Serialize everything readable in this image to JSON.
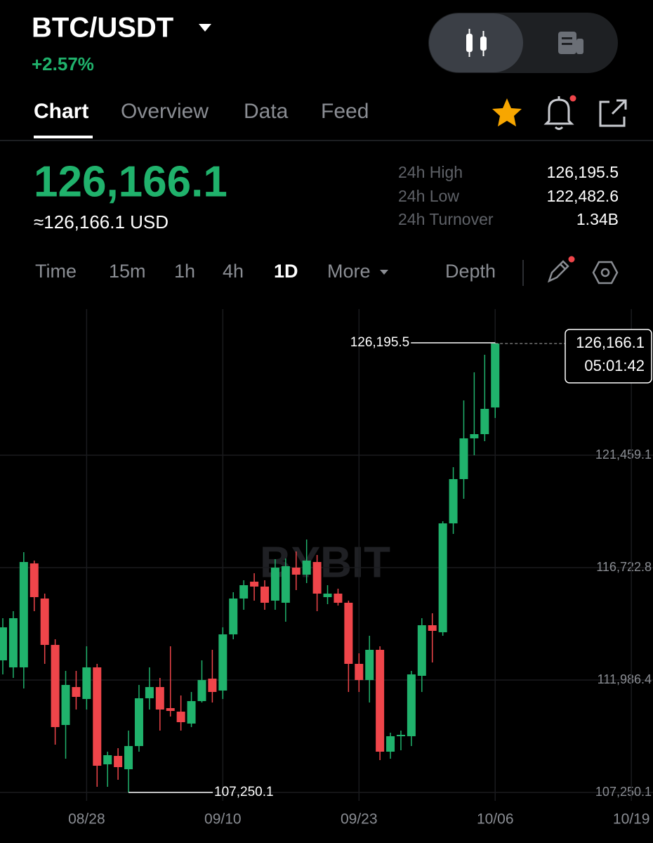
{
  "header": {
    "pair": "BTC/USDT",
    "change": "+2.57%"
  },
  "tabs": [
    "Chart",
    "Overview",
    "Data",
    "Feed"
  ],
  "ticker": {
    "price": "126,166.1",
    "fiat": "≈126,166.1 USD"
  },
  "stats": [
    {
      "label": "24h High",
      "value": "126,195.5"
    },
    {
      "label": "24h Low",
      "value": "122,482.6"
    },
    {
      "label": "24h Turnover",
      "value": "1.34B"
    }
  ],
  "toolbar": {
    "intervals": [
      "Time",
      "15m",
      "1h",
      "4h",
      "1D",
      "More"
    ],
    "depth": "Depth"
  },
  "chart_data": {
    "type": "candlestick",
    "categories": [
      null,
      null,
      null,
      null,
      null,
      null,
      null,
      null,
      "08/28",
      null,
      null,
      null,
      null,
      null,
      null,
      null,
      null,
      null,
      null,
      null,
      null,
      "09/10",
      null,
      null,
      null,
      null,
      null,
      null,
      null,
      null,
      null,
      null,
      null,
      null,
      "09/23",
      null,
      null,
      null,
      null,
      null,
      null,
      null,
      null,
      null,
      null,
      null,
      null,
      "10/06",
      null,
      null,
      null,
      null,
      null,
      null,
      null,
      null,
      null,
      null,
      null,
      null,
      "10/19"
    ],
    "open": [
      112816,
      112520,
      112520,
      116901,
      115421,
      113467,
      110093,
      111691,
      111188,
      112520,
      108435,
      108790,
      108228,
      109205,
      111218,
      111691,
      110803,
      110655,
      110152,
      111099,
      112046,
      111543,
      113911,
      115421,
      116131,
      115924,
      115332,
      115243,
      116723,
      116427,
      116960,
      115480,
      115628,
      115243,
      112668,
      111987,
      113260,
      108968,
      109619,
      109619,
      112165,
      114296,
      114000,
      118588,
      120453,
      122170,
      122347,
      123472,
      null,
      null,
      null,
      null,
      null,
      null,
      null,
      null,
      null,
      null,
      null,
      null,
      null
    ],
    "high": [
      114592,
      114888,
      117374,
      117019,
      115628,
      113704,
      112372,
      112372,
      113408,
      112668,
      108968,
      109116,
      109856,
      111780,
      112520,
      112076,
      113408,
      111336,
      111484,
      112816,
      113260,
      114207,
      115687,
      116190,
      116486,
      116190,
      117078,
      117108,
      117404,
      117907,
      117256,
      115983,
      115835,
      115332,
      113112,
      113852,
      113408,
      109767,
      109856,
      112372,
      114592,
      114799,
      118677,
      120956,
      123768,
      124952,
      125692,
      126195.5,
      null,
      null,
      null,
      null,
      null,
      null,
      null,
      null,
      null,
      null,
      null,
      null,
      null
    ],
    "low": [
      112224,
      112076,
      111632,
      114888,
      112668,
      109264,
      108672,
      110744,
      110744,
      107488,
      107488,
      107784,
      107250.1,
      108968,
      110744,
      109856,
      110448,
      109856,
      110004,
      111040,
      111040,
      111188,
      113704,
      114947,
      115332,
      114947,
      114947,
      114444,
      115776,
      116072,
      114888,
      115184,
      115125,
      111484,
      111484,
      111040,
      108613,
      108672,
      109027,
      109205,
      111484,
      112727,
      113852,
      118144,
      119624,
      121459,
      122051,
      123028,
      null,
      null,
      null,
      null,
      null,
      null,
      null,
      null,
      null,
      null,
      null,
      null,
      null
    ],
    "close": [
      114207,
      114592,
      116960,
      115480,
      113467,
      110004,
      111780,
      111277,
      112520,
      108376,
      108820,
      108317,
      109205,
      111218,
      111691,
      110744,
      110685,
      110211,
      111099,
      111987,
      111484,
      113911,
      115421,
      115983,
      115924,
      115243,
      116723,
      116782,
      116427,
      117019,
      115628,
      115628,
      115243,
      112668,
      111987,
      113260,
      108968,
      109619,
      109678,
      112224,
      114296,
      114059,
      118588,
      120453,
      122170,
      122347,
      123413,
      126166.1,
      null,
      null,
      null,
      null,
      null,
      null,
      null,
      null,
      null,
      null,
      null,
      null,
      null
    ],
    "up_color": "#20b26c",
    "down_color": "#ef454a",
    "ylim": [
      106896,
      127616
    ],
    "yticks": [
      {
        "value": 107250.1,
        "label": "107,250.1"
      },
      {
        "value": 111986.4,
        "label": "111,986.4"
      },
      {
        "value": 116722.8,
        "label": "116,722.8"
      },
      {
        "value": 121459.1,
        "label": "121,459.1"
      }
    ],
    "grid": true,
    "annotations": [
      {
        "value": 126195.5,
        "label": "126,195.5"
      },
      {
        "value": 107250.1,
        "label": "107,250.1"
      }
    ],
    "last_price": {
      "value": 126166.1,
      "label": "126,166.1"
    },
    "countdown": "05:01:42",
    "watermark": "BYBIT"
  }
}
